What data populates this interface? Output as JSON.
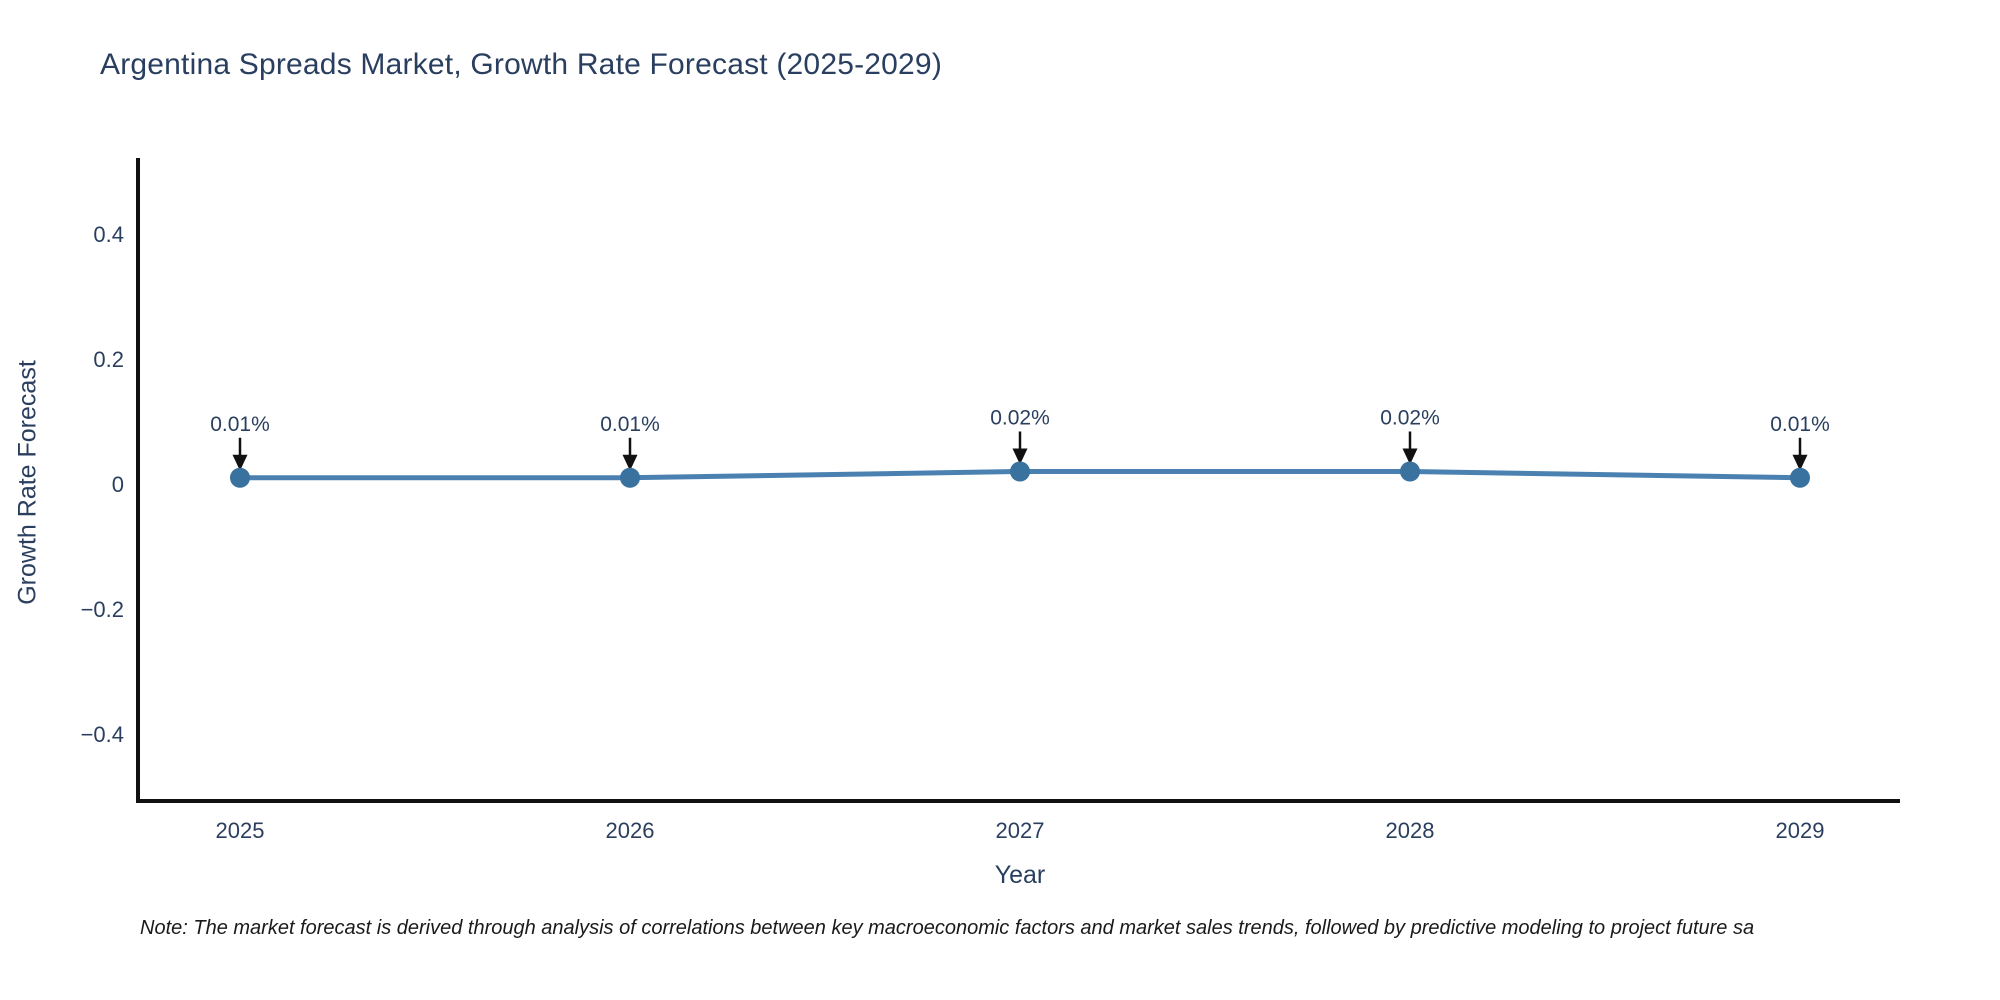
{
  "chart": {
    "title": "Argentina Spreads Market, Growth Rate Forecast (2025-2029)",
    "xlabel": "Year",
    "ylabel": "Growth Rate Forecast",
    "note": "Note: The market forecast is derived through analysis of correlations between key macroeconomic factors and market sales trends, followed by predictive modeling to project future sa"
  },
  "chart_data": {
    "type": "line",
    "categories": [
      "2025",
      "2026",
      "2027",
      "2028",
      "2029"
    ],
    "values": [
      0.01,
      0.01,
      0.02,
      0.02,
      0.01
    ],
    "point_labels": [
      "0.01%",
      "0.01%",
      "0.02%",
      "0.02%",
      "0.01%"
    ],
    "title": "Argentina Spreads Market, Growth Rate Forecast (2025-2029)",
    "xlabel": "Year",
    "ylabel": "Growth Rate Forecast",
    "ylim": [
      -0.5,
      0.52
    ],
    "ytick_values": [
      0.4,
      0.2,
      0,
      -0.2,
      -0.4
    ],
    "ytick_labels": [
      "0.4",
      "0.2",
      "0",
      "−0.2",
      "−0.4"
    ],
    "grid": false,
    "legend": false,
    "annotations_have_arrows": true,
    "colors": {
      "line": "#4a81b0",
      "marker": "#39719f",
      "axis": "#111111",
      "tick_text": "#2a3f5f",
      "annotation_text": "#2a3f5f",
      "arrow": "#111111",
      "background": "#ffffff"
    }
  }
}
